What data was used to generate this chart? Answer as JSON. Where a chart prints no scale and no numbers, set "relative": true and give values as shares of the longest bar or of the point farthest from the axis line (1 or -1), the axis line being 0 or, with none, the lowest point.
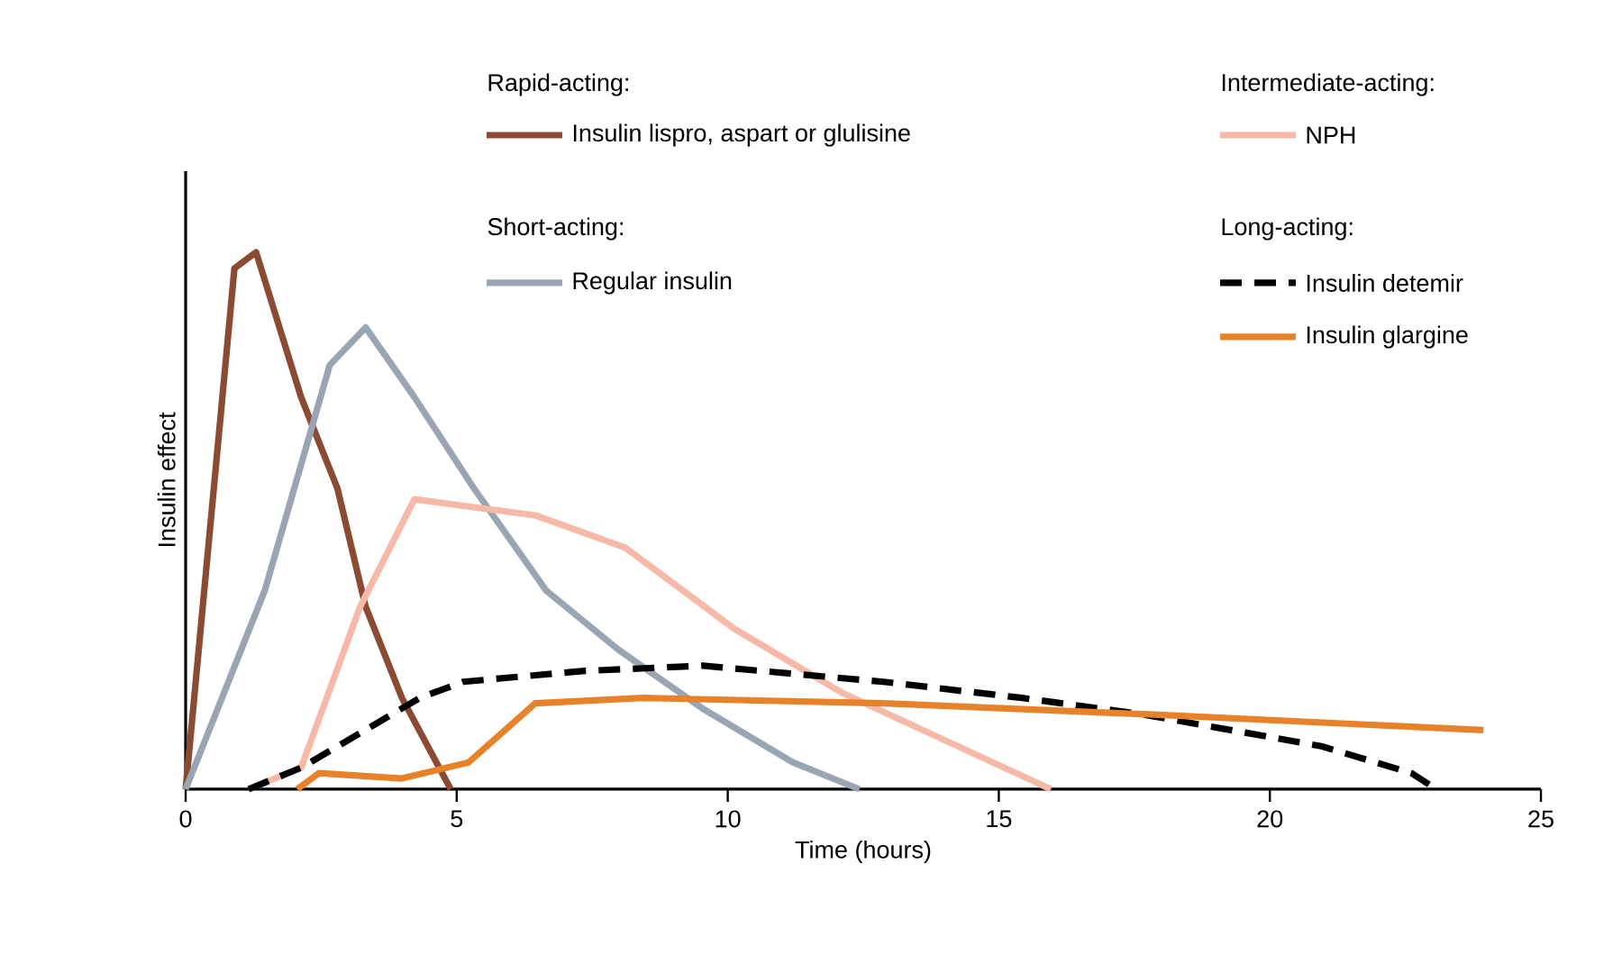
{
  "chart_data": {
    "type": "line",
    "relative": true,
    "xlabel": "Time (hours)",
    "ylabel": "Insulin effect",
    "annotations": [
      "Rapid-acting:",
      "Short-acting:",
      "Intermediate-acting:",
      "Long-acting:"
    ],
    "xlim": [
      0,
      25
    ],
    "xticks": [
      0,
      5,
      10,
      15,
      20,
      25
    ],
    "legend": "top right",
    "marker": "none",
    "series": [
      {
        "name": "Insulin lispro, aspart or glulisine",
        "color": "#8b4a32",
        "x": [
          0,
          0.9,
          1.3,
          2.13,
          2.8,
          3.32,
          3.99,
          4.89
        ],
        "values": [
          0,
          0.97,
          1.0,
          0.73,
          0.56,
          0.34,
          0.17,
          0
        ]
      },
      {
        "name": "Regular insulin",
        "color": "#9aa5b4",
        "x": [
          0,
          1.46,
          2.66,
          3.32,
          4.22,
          5.32,
          6.65,
          7.98,
          9.54,
          11.2,
          12.43
        ],
        "values": [
          0,
          0.37,
          0.79,
          0.86,
          0.73,
          0.56,
          0.37,
          0.26,
          0.15,
          0.05,
          0
        ]
      },
      {
        "name": "NPH",
        "color": "#f6b9a8",
        "x": [
          1.16,
          2.13,
          3.22,
          4.22,
          6.45,
          8.11,
          10.1,
          12.1,
          15.96
        ],
        "values": [
          0,
          0.04,
          0.34,
          0.54,
          0.51,
          0.45,
          0.3,
          0.18,
          0
        ]
      },
      {
        "name": "Insulin detemir",
        "color": "#000000",
        "line_style": "dashed",
        "x": [
          1.16,
          2.13,
          4.32,
          5.12,
          7.31,
          9.54,
          12.87,
          15.43,
          17.62,
          20.95,
          22.61,
          23.07
        ],
        "values": [
          0,
          0.04,
          0.17,
          0.2,
          0.22,
          0.23,
          0.2,
          0.17,
          0.14,
          0.08,
          0.03,
          0
        ]
      },
      {
        "name": "Insulin glargine",
        "color": "#e8822a",
        "x": [
          2.06,
          2.46,
          3.99,
          5.22,
          6.45,
          8.44,
          12.87,
          17.62,
          23.94
        ],
        "values": [
          0,
          0.03,
          0.02,
          0.05,
          0.16,
          0.17,
          0.16,
          0.14,
          0.11
        ]
      }
    ]
  }
}
